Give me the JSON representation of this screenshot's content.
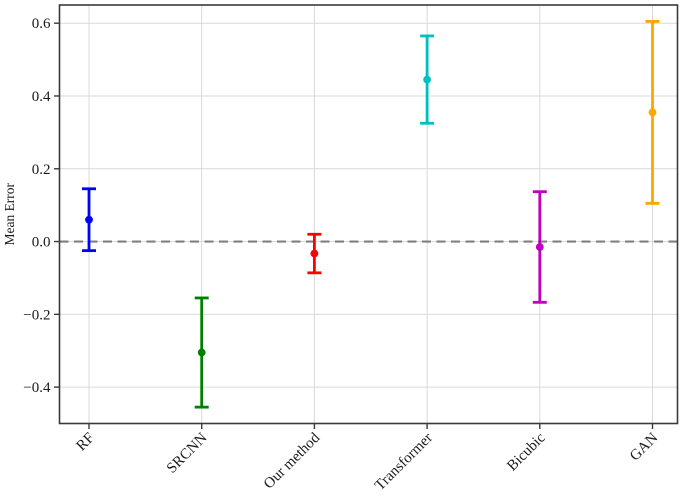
{
  "figure": {
    "ylabel": "Mean Error"
  },
  "chart_data": {
    "type": "scatter",
    "subtype": "errorbar",
    "title": "",
    "xlabel": "",
    "ylabel": "Mean Error",
    "categories": [
      "RF",
      "SRCNN",
      "Our method",
      "Transformer",
      "Bicubic",
      "GAN"
    ],
    "series": [
      {
        "name": "mean_error",
        "values": [
          0.06,
          -0.305,
          -0.033,
          0.445,
          -0.015,
          0.355
        ],
        "errors": [
          0.085,
          0.15,
          0.053,
          0.12,
          0.152,
          0.25
        ]
      }
    ],
    "point_colors": [
      "#0000ff",
      "#008000",
      "#ff0000",
      "#00bfbf",
      "#bf00bf",
      "#ffa500"
    ],
    "yticks": [
      -0.4,
      -0.2,
      0.0,
      0.2,
      0.4,
      0.6
    ],
    "ylim": [
      -0.5,
      0.65
    ],
    "grid": true,
    "grid_color": "#d9d9d9",
    "zero_line": {
      "y": 0.0,
      "style": "dashed",
      "color": "#808080"
    },
    "axis_color": "#3a3a3a",
    "legend": false,
    "x_tick_rotation_deg": 45
  }
}
